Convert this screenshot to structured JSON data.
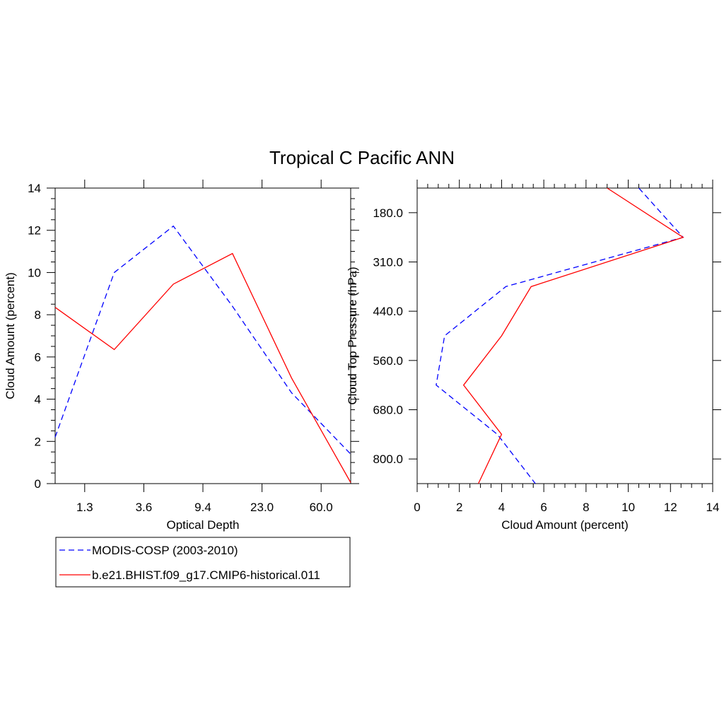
{
  "title": "Tropical C Pacific ANN",
  "colors": {
    "obs": "#0000ff",
    "model": "#ff0000",
    "axis": "#000000"
  },
  "chart_data": [
    {
      "type": "line",
      "xlabel": "Optical Depth",
      "ylabel": "Cloud Amount (percent)",
      "x_ticklabels": [
        "1.3",
        "3.6",
        "9.4",
        "23.0",
        "60.0"
      ],
      "x_range": [
        0,
        10
      ],
      "x_points": [
        0,
        2,
        4,
        6,
        8,
        10
      ],
      "ylim": [
        0,
        14
      ],
      "y_ticks": [
        0,
        2,
        4,
        6,
        8,
        10,
        12,
        14
      ],
      "series": [
        {
          "name": "MODIS-COSP (2003-2010)",
          "style": "dashed",
          "color": "#0000ff",
          "values": [
            2.2,
            10.0,
            12.2,
            8.4,
            4.3,
            1.4
          ]
        },
        {
          "name": "b.e21.BHIST.f09_g17.CMIP6-historical.011",
          "style": "solid",
          "color": "#ff0000",
          "values": [
            8.35,
            6.35,
            9.45,
            10.9,
            5.0,
            0.05
          ]
        }
      ]
    },
    {
      "type": "line",
      "xlabel": "Cloud Amount (percent)",
      "ylabel": "Cloud Top Pressure (hPa)",
      "xlim": [
        0,
        14
      ],
      "x_ticks": [
        0,
        2,
        4,
        6,
        8,
        10,
        12,
        14
      ],
      "y_ticklabels": [
        "180.0",
        "310.0",
        "440.0",
        "560.0",
        "680.0",
        "800.0"
      ],
      "y_levels": [
        0,
        1,
        2,
        3,
        4,
        5,
        6
      ],
      "y_inverted": true,
      "series": [
        {
          "name": "MODIS-COSP (2003-2010)",
          "style": "dashed",
          "color": "#0000ff",
          "values": [
            10.5,
            12.6,
            4.2,
            1.3,
            0.9,
            3.8,
            5.6
          ]
        },
        {
          "name": "b.e21.BHIST.f09_g17.CMIP6-historical.011",
          "style": "solid",
          "color": "#ff0000",
          "values": [
            9.0,
            12.6,
            5.4,
            4.0,
            2.2,
            4.0,
            2.9
          ]
        }
      ]
    }
  ],
  "legend": {
    "entries": [
      {
        "label": "MODIS-COSP (2003-2010)",
        "style": "dashed",
        "color": "#0000ff"
      },
      {
        "label": "b.e21.BHIST.f09_g17.CMIP6-historical.011",
        "style": "solid",
        "color": "#ff0000"
      }
    ]
  }
}
